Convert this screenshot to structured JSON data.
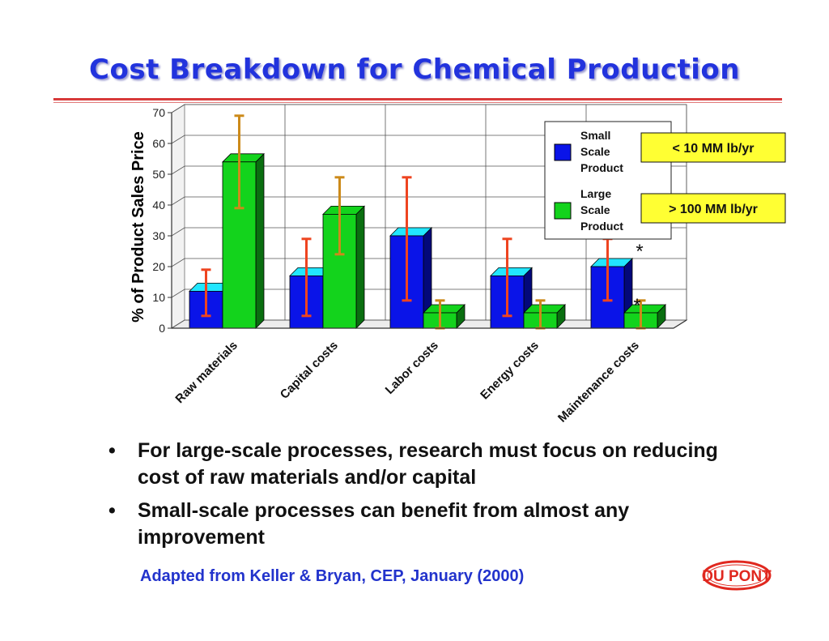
{
  "slide": {
    "title": "Cost Breakdown for Chemical Production",
    "bullets": [
      "For large-scale processes, research must focus on reducing cost of raw materials and/or capital",
      "Small-scale processes can benefit from almost any improvement"
    ],
    "bullet_glyph": "•",
    "source": "Adapted from Keller & Bryan, CEP, January  (2000)",
    "logo_text": "DU PONT"
  },
  "chart_data": {
    "type": "bar",
    "title": "",
    "ylabel": "% of Product Sales Price",
    "xlabel": "",
    "ylim": [
      0,
      70
    ],
    "yticks": [
      0,
      10,
      20,
      30,
      40,
      50,
      60,
      70
    ],
    "grid": true,
    "categories": [
      "Raw materials",
      "Capital costs",
      "Labor costs",
      "Energy costs",
      "Maintenance costs"
    ],
    "series": [
      {
        "name": "Small Scale Product",
        "color": "#0a14e8",
        "top_color": "#22e6ff",
        "side_color": "#03087a",
        "values": [
          12,
          17,
          30,
          17,
          20
        ],
        "error_low": [
          4,
          4,
          9,
          4,
          9
        ],
        "error_high": [
          19,
          29,
          49,
          29,
          29
        ],
        "error_color": "#ee4420"
      },
      {
        "name": "Large Scale Product",
        "color": "#13d31c",
        "top_color": "#13d31c",
        "side_color": "#0a6e10",
        "values": [
          54,
          37,
          5,
          5,
          5
        ],
        "error_low": [
          39,
          24,
          0,
          0,
          0
        ],
        "error_high": [
          69,
          49,
          9,
          9,
          9
        ],
        "error_color": "#cc8a1a"
      }
    ],
    "legend_position": "top-right",
    "legend_labels": [
      "Small\nScale\nProduct",
      "Large\nScale\nProduct"
    ],
    "annotations": [
      {
        "text": "< 10 MM lb/yr",
        "bg": "#ffff33"
      },
      {
        "text": "> 100 MM lb/yr",
        "bg": "#ffff33"
      }
    ],
    "markers": [
      "*",
      "*"
    ]
  }
}
